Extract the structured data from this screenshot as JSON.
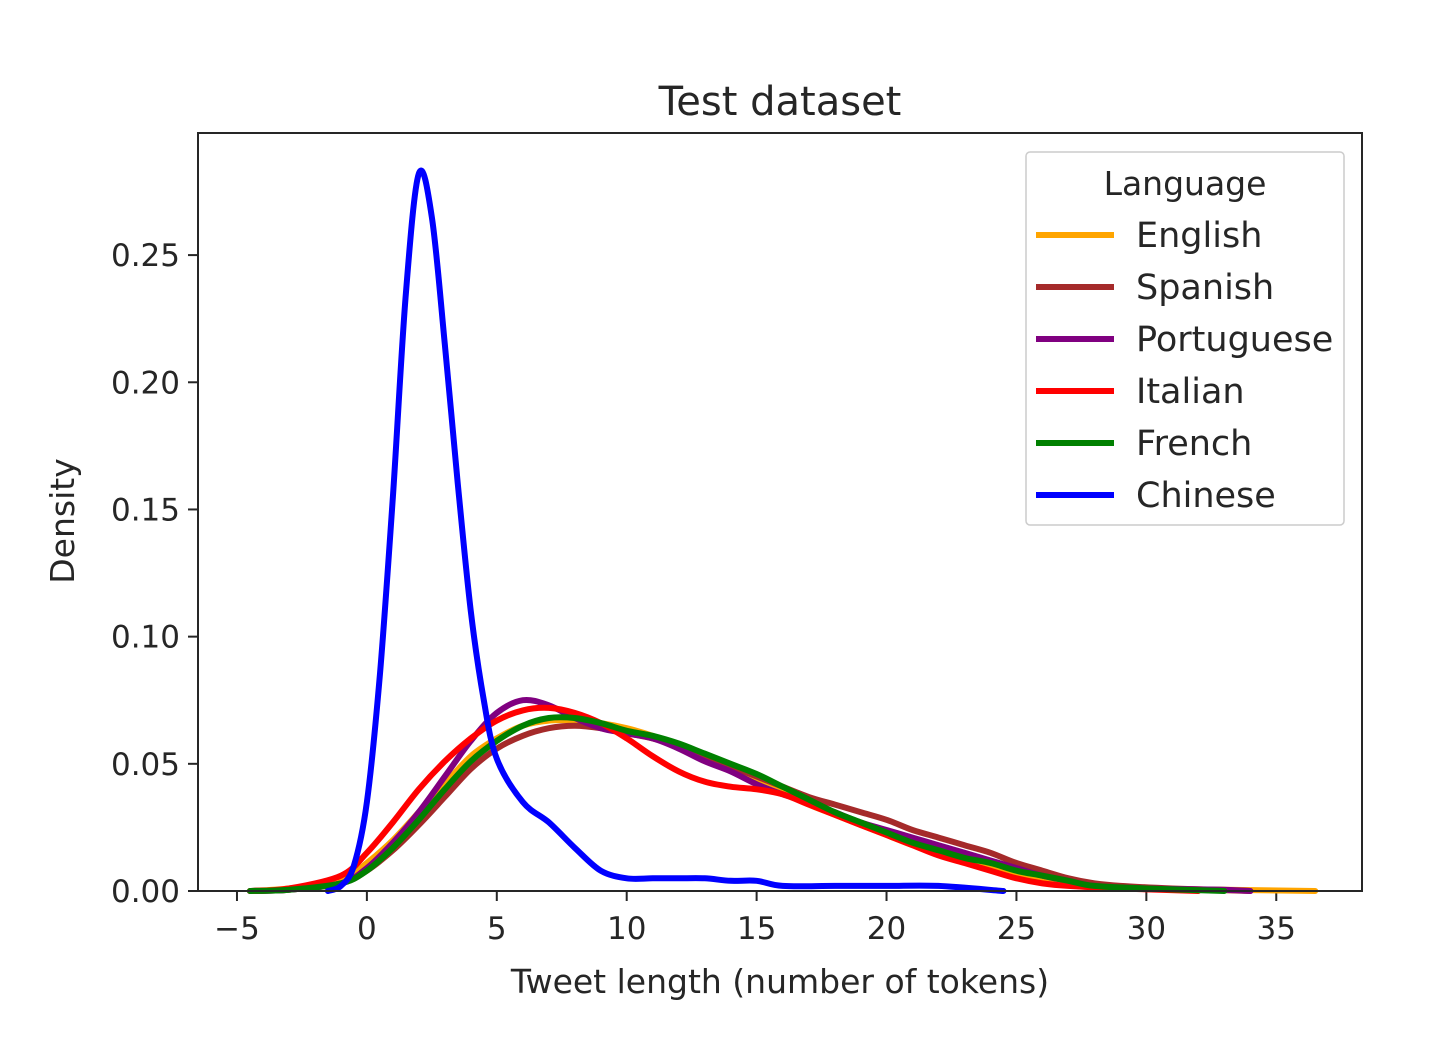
{
  "chart_data": {
    "type": "line",
    "title": "Test dataset",
    "xlabel": "Tweet length (number of tokens)",
    "ylabel": "Density",
    "xlim": [
      -6.5,
      38.3
    ],
    "ylim": [
      0,
      0.298
    ],
    "xticks": [
      -5,
      0,
      5,
      10,
      15,
      20,
      25,
      30,
      35
    ],
    "xtick_labels": [
      "−5",
      "0",
      "5",
      "10",
      "15",
      "20",
      "25",
      "30",
      "35"
    ],
    "yticks": [
      0.0,
      0.05,
      0.1,
      0.15,
      0.2,
      0.25
    ],
    "ytick_labels": [
      "0.00",
      "0.05",
      "0.10",
      "0.15",
      "0.20",
      "0.25"
    ],
    "grid": false,
    "legend": {
      "title": "Language",
      "position": "top-right"
    },
    "series": [
      {
        "name": "English",
        "color": "#ffa500",
        "points": [
          [
            -4.5,
            0.0
          ],
          [
            -3,
            0.001
          ],
          [
            -1,
            0.004
          ],
          [
            0,
            0.011
          ],
          [
            1,
            0.02
          ],
          [
            2,
            0.031
          ],
          [
            3,
            0.042
          ],
          [
            4,
            0.053
          ],
          [
            5,
            0.06
          ],
          [
            6,
            0.065
          ],
          [
            7,
            0.067
          ],
          [
            8,
            0.067
          ],
          [
            9,
            0.066
          ],
          [
            10,
            0.064
          ],
          [
            11,
            0.061
          ],
          [
            12,
            0.057
          ],
          [
            13,
            0.052
          ],
          [
            14,
            0.048
          ],
          [
            15,
            0.044
          ],
          [
            16,
            0.039
          ],
          [
            17,
            0.034
          ],
          [
            18,
            0.03
          ],
          [
            19,
            0.026
          ],
          [
            20,
            0.022
          ],
          [
            21,
            0.018
          ],
          [
            22,
            0.015
          ],
          [
            23,
            0.012
          ],
          [
            24,
            0.009
          ],
          [
            25,
            0.007
          ],
          [
            26,
            0.004
          ],
          [
            27,
            0.003
          ],
          [
            28,
            0.002
          ],
          [
            30,
            0.001
          ],
          [
            33,
            0.0005
          ],
          [
            36.5,
            0.0
          ]
        ]
      },
      {
        "name": "Spanish",
        "color": "#a52a2a",
        "points": [
          [
            -4.5,
            0.0
          ],
          [
            -3,
            0.0005
          ],
          [
            -1,
            0.003
          ],
          [
            0,
            0.008
          ],
          [
            1,
            0.016
          ],
          [
            2,
            0.026
          ],
          [
            3,
            0.037
          ],
          [
            4,
            0.048
          ],
          [
            5,
            0.056
          ],
          [
            6,
            0.061
          ],
          [
            7,
            0.064
          ],
          [
            8,
            0.065
          ],
          [
            9,
            0.064
          ],
          [
            10,
            0.062
          ],
          [
            11,
            0.06
          ],
          [
            12,
            0.057
          ],
          [
            13,
            0.053
          ],
          [
            14,
            0.049
          ],
          [
            15,
            0.045
          ],
          [
            16,
            0.041
          ],
          [
            17,
            0.037
          ],
          [
            18,
            0.034
          ],
          [
            19,
            0.031
          ],
          [
            20,
            0.028
          ],
          [
            21,
            0.024
          ],
          [
            22,
            0.021
          ],
          [
            23,
            0.018
          ],
          [
            24,
            0.015
          ],
          [
            25,
            0.011
          ],
          [
            26,
            0.008
          ],
          [
            27,
            0.005
          ],
          [
            28,
            0.003
          ],
          [
            29,
            0.002
          ],
          [
            31,
            0.001
          ],
          [
            34,
            0.0
          ]
        ]
      },
      {
        "name": "Portuguese",
        "color": "#800080",
        "points": [
          [
            -4.5,
            0.0
          ],
          [
            -3,
            0.0005
          ],
          [
            -1,
            0.003
          ],
          [
            0,
            0.009
          ],
          [
            1,
            0.019
          ],
          [
            2,
            0.031
          ],
          [
            3,
            0.045
          ],
          [
            4,
            0.059
          ],
          [
            5,
            0.07
          ],
          [
            6,
            0.075
          ],
          [
            7,
            0.073
          ],
          [
            8,
            0.068
          ],
          [
            9,
            0.064
          ],
          [
            10,
            0.062
          ],
          [
            11,
            0.06
          ],
          [
            12,
            0.056
          ],
          [
            13,
            0.051
          ],
          [
            14,
            0.047
          ],
          [
            15,
            0.042
          ],
          [
            16,
            0.038
          ],
          [
            17,
            0.035
          ],
          [
            18,
            0.031
          ],
          [
            19,
            0.027
          ],
          [
            20,
            0.024
          ],
          [
            21,
            0.021
          ],
          [
            22,
            0.018
          ],
          [
            23,
            0.015
          ],
          [
            24,
            0.012
          ],
          [
            25,
            0.009
          ],
          [
            26,
            0.006
          ],
          [
            27,
            0.004
          ],
          [
            28,
            0.002
          ],
          [
            30,
            0.001
          ],
          [
            33,
            0.0005
          ],
          [
            34,
            0.0
          ]
        ]
      },
      {
        "name": "Italian",
        "color": "#ff0000",
        "points": [
          [
            -4.5,
            0.0
          ],
          [
            -3,
            0.001
          ],
          [
            -1,
            0.006
          ],
          [
            0,
            0.015
          ],
          [
            1,
            0.027
          ],
          [
            2,
            0.04
          ],
          [
            3,
            0.051
          ],
          [
            4,
            0.06
          ],
          [
            5,
            0.067
          ],
          [
            6,
            0.071
          ],
          [
            7,
            0.072
          ],
          [
            8,
            0.07
          ],
          [
            9,
            0.066
          ],
          [
            10,
            0.06
          ],
          [
            11,
            0.053
          ],
          [
            12,
            0.047
          ],
          [
            13,
            0.043
          ],
          [
            14,
            0.041
          ],
          [
            15,
            0.04
          ],
          [
            16,
            0.038
          ],
          [
            17,
            0.034
          ],
          [
            18,
            0.03
          ],
          [
            19,
            0.026
          ],
          [
            20,
            0.022
          ],
          [
            21,
            0.018
          ],
          [
            22,
            0.014
          ],
          [
            23,
            0.011
          ],
          [
            24,
            0.008
          ],
          [
            25,
            0.005
          ],
          [
            26,
            0.003
          ],
          [
            27,
            0.002
          ],
          [
            29,
            0.001
          ],
          [
            32,
            0.0
          ]
        ]
      },
      {
        "name": "French",
        "color": "#008000",
        "points": [
          [
            -4.5,
            0.0
          ],
          [
            -3,
            0.0005
          ],
          [
            -1,
            0.003
          ],
          [
            0,
            0.008
          ],
          [
            1,
            0.017
          ],
          [
            2,
            0.028
          ],
          [
            3,
            0.04
          ],
          [
            4,
            0.051
          ],
          [
            5,
            0.059
          ],
          [
            6,
            0.065
          ],
          [
            7,
            0.068
          ],
          [
            8,
            0.068
          ],
          [
            9,
            0.066
          ],
          [
            10,
            0.063
          ],
          [
            11,
            0.061
          ],
          [
            12,
            0.058
          ],
          [
            13,
            0.054
          ],
          [
            14,
            0.05
          ],
          [
            15,
            0.046
          ],
          [
            16,
            0.041
          ],
          [
            17,
            0.036
          ],
          [
            18,
            0.031
          ],
          [
            19,
            0.027
          ],
          [
            20,
            0.023
          ],
          [
            21,
            0.019
          ],
          [
            22,
            0.016
          ],
          [
            23,
            0.013
          ],
          [
            24,
            0.011
          ],
          [
            25,
            0.008
          ],
          [
            26,
            0.006
          ],
          [
            27,
            0.004
          ],
          [
            28,
            0.002
          ],
          [
            30,
            0.001
          ],
          [
            33,
            0.0
          ]
        ]
      },
      {
        "name": "Chinese",
        "color": "#0000ff",
        "points": [
          [
            -1.5,
            0.0
          ],
          [
            -1,
            0.002
          ],
          [
            -0.5,
            0.01
          ],
          [
            0,
            0.035
          ],
          [
            0.5,
            0.085
          ],
          [
            1,
            0.155
          ],
          [
            1.5,
            0.235
          ],
          [
            2,
            0.282
          ],
          [
            2.5,
            0.265
          ],
          [
            3,
            0.215
          ],
          [
            3.5,
            0.16
          ],
          [
            4,
            0.11
          ],
          [
            4.5,
            0.075
          ],
          [
            5,
            0.052
          ],
          [
            6,
            0.035
          ],
          [
            7,
            0.027
          ],
          [
            8,
            0.017
          ],
          [
            9,
            0.008
          ],
          [
            10,
            0.005
          ],
          [
            11,
            0.005
          ],
          [
            12,
            0.005
          ],
          [
            13,
            0.005
          ],
          [
            14,
            0.004
          ],
          [
            15,
            0.004
          ],
          [
            16,
            0.002
          ],
          [
            18,
            0.002
          ],
          [
            20,
            0.002
          ],
          [
            22,
            0.002
          ],
          [
            24.5,
            0.0
          ]
        ]
      }
    ]
  }
}
